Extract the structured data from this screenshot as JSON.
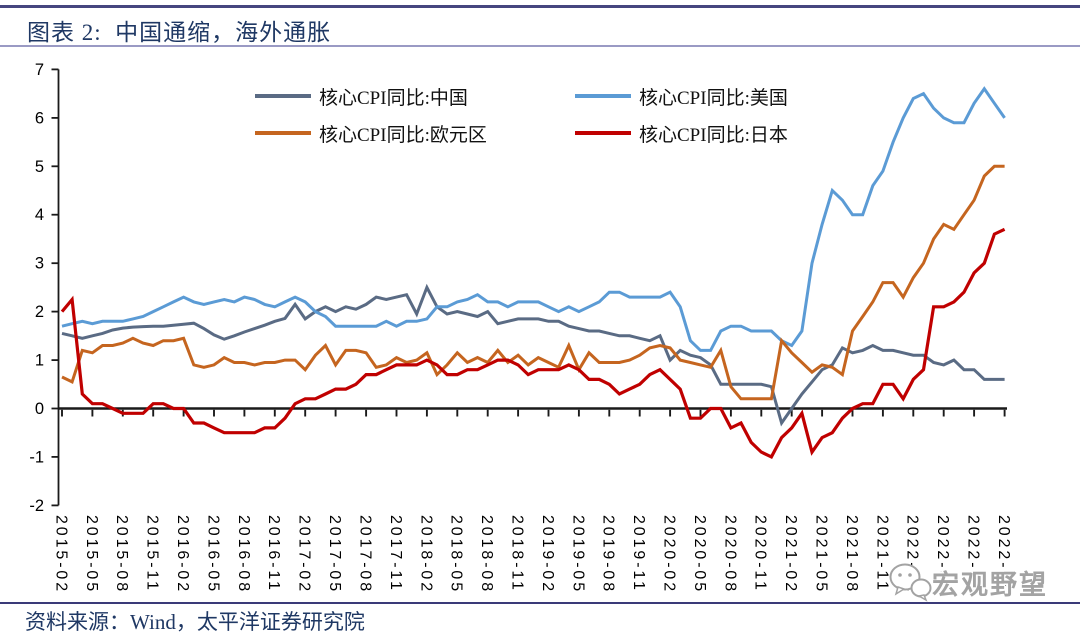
{
  "header": {
    "title": "图表 2:  中国通缩，海外通胀"
  },
  "footer": {
    "source_label": "资料来源：Wind，太平洋证券研究院"
  },
  "watermark": {
    "text": "宏观野望",
    "icon": "wechat-chat-bubbles-icon"
  },
  "chart_data": {
    "type": "line",
    "title": "中国通缩，海外通胀",
    "xlabel": "",
    "ylabel": "",
    "ylim": [
      -2,
      7
    ],
    "y_ticks": [
      7,
      6,
      5,
      4,
      3,
      2,
      1,
      0,
      -1,
      -2
    ],
    "x_tick_step": 3,
    "grid": false,
    "legend_position": "top-inside-two-columns",
    "x": [
      "2015-02",
      "2015-03",
      "2015-04",
      "2015-05",
      "2015-06",
      "2015-07",
      "2015-08",
      "2015-09",
      "2015-10",
      "2015-11",
      "2015-12",
      "2016-01",
      "2016-02",
      "2016-03",
      "2016-04",
      "2016-05",
      "2016-06",
      "2016-07",
      "2016-08",
      "2016-09",
      "2016-10",
      "2016-11",
      "2016-12",
      "2017-01",
      "2017-02",
      "2017-03",
      "2017-04",
      "2017-05",
      "2017-06",
      "2017-07",
      "2017-08",
      "2017-09",
      "2017-10",
      "2017-11",
      "2017-12",
      "2018-01",
      "2018-02",
      "2018-03",
      "2018-04",
      "2018-05",
      "2018-06",
      "2018-07",
      "2018-08",
      "2018-09",
      "2018-10",
      "2018-11",
      "2018-12",
      "2019-01",
      "2019-02",
      "2019-03",
      "2019-04",
      "2019-05",
      "2019-06",
      "2019-07",
      "2019-08",
      "2019-09",
      "2019-10",
      "2019-11",
      "2019-12",
      "2020-01",
      "2020-02",
      "2020-03",
      "2020-04",
      "2020-05",
      "2020-06",
      "2020-07",
      "2020-08",
      "2020-09",
      "2020-10",
      "2020-11",
      "2020-12",
      "2021-01",
      "2021-02",
      "2021-03",
      "2021-04",
      "2021-05",
      "2021-06",
      "2021-07",
      "2021-08",
      "2021-09",
      "2021-10",
      "2021-11",
      "2021-12",
      "2022-01",
      "2022-02",
      "2022-03",
      "2022-04",
      "2022-05",
      "2022-06",
      "2022-07",
      "2022-08",
      "2022-09",
      "2022-10",
      "2022-11"
    ],
    "series": [
      {
        "name": "核心CPI同比:中国",
        "color": "#5a6b84",
        "values": [
          1.55,
          1.5,
          1.45,
          1.5,
          1.55,
          1.62,
          1.66,
          1.68,
          1.69,
          1.7,
          1.7,
          1.72,
          1.74,
          1.76,
          1.65,
          1.52,
          1.43,
          1.5,
          1.58,
          1.65,
          1.72,
          1.8,
          1.86,
          2.15,
          1.85,
          2.0,
          2.1,
          2.0,
          2.1,
          2.05,
          2.15,
          2.3,
          2.25,
          2.3,
          2.35,
          1.95,
          2.5,
          2.1,
          1.95,
          2.0,
          1.95,
          1.9,
          2.0,
          1.75,
          1.8,
          1.85,
          1.85,
          1.85,
          1.8,
          1.8,
          1.7,
          1.65,
          1.6,
          1.6,
          1.55,
          1.5,
          1.5,
          1.45,
          1.4,
          1.5,
          1.0,
          1.2,
          1.1,
          1.05,
          0.9,
          0.5,
          0.5,
          0.5,
          0.5,
          0.5,
          0.45,
          -0.3,
          0.0,
          0.3,
          0.55,
          0.8,
          0.9,
          1.25,
          1.15,
          1.2,
          1.3,
          1.2,
          1.2,
          1.15,
          1.1,
          1.1,
          0.95,
          0.9,
          1.0,
          0.8,
          0.8,
          0.6,
          0.6,
          0.6
        ]
      },
      {
        "name": "核心CPI同比:美国",
        "color": "#5B9BD5",
        "values": [
          1.7,
          1.75,
          1.8,
          1.75,
          1.8,
          1.8,
          1.8,
          1.85,
          1.9,
          2.0,
          2.1,
          2.2,
          2.3,
          2.2,
          2.15,
          2.2,
          2.25,
          2.2,
          2.3,
          2.25,
          2.15,
          2.1,
          2.2,
          2.3,
          2.2,
          2.0,
          1.9,
          1.7,
          1.7,
          1.7,
          1.7,
          1.7,
          1.8,
          1.7,
          1.8,
          1.8,
          1.85,
          2.1,
          2.1,
          2.2,
          2.25,
          2.35,
          2.2,
          2.2,
          2.1,
          2.2,
          2.2,
          2.2,
          2.1,
          2.0,
          2.1,
          2.0,
          2.1,
          2.2,
          2.4,
          2.4,
          2.3,
          2.3,
          2.3,
          2.3,
          2.4,
          2.1,
          1.4,
          1.2,
          1.2,
          1.6,
          1.7,
          1.7,
          1.6,
          1.6,
          1.6,
          1.4,
          1.3,
          1.6,
          3.0,
          3.8,
          4.5,
          4.3,
          4.0,
          4.0,
          4.6,
          4.9,
          5.5,
          6.0,
          6.4,
          6.5,
          6.2,
          6.0,
          5.9,
          5.9,
          6.3,
          6.6,
          6.3,
          6.0
        ]
      },
      {
        "name": "核心CPI同比:欧元区",
        "color": "#C5651F",
        "values": [
          0.65,
          0.55,
          1.2,
          1.15,
          1.3,
          1.3,
          1.35,
          1.45,
          1.35,
          1.3,
          1.4,
          1.4,
          1.45,
          0.9,
          0.85,
          0.9,
          1.05,
          0.95,
          0.95,
          0.9,
          0.95,
          0.95,
          1.0,
          1.0,
          0.8,
          1.1,
          1.3,
          0.9,
          1.2,
          1.2,
          1.15,
          0.85,
          0.9,
          1.05,
          0.95,
          1.0,
          1.15,
          0.7,
          0.9,
          1.15,
          0.95,
          1.05,
          0.95,
          1.2,
          0.95,
          1.1,
          0.9,
          1.05,
          0.95,
          0.85,
          1.3,
          0.8,
          1.15,
          0.95,
          0.95,
          0.95,
          1.0,
          1.1,
          1.25,
          1.3,
          1.25,
          1.0,
          0.95,
          0.9,
          0.85,
          1.2,
          0.45,
          0.2,
          0.2,
          0.2,
          0.2,
          1.4,
          1.15,
          0.95,
          0.75,
          0.9,
          0.85,
          0.7,
          1.6,
          1.9,
          2.2,
          2.6,
          2.6,
          2.3,
          2.7,
          3.0,
          3.5,
          3.8,
          3.7,
          4.0,
          4.3,
          4.8,
          5.0,
          5.0
        ]
      },
      {
        "name": "核心CPI同比:日本",
        "color": "#C00000",
        "values": [
          2.0,
          2.25,
          0.3,
          0.1,
          0.1,
          0.0,
          -0.1,
          -0.1,
          -0.1,
          0.1,
          0.1,
          0.0,
          0.0,
          -0.3,
          -0.3,
          -0.4,
          -0.5,
          -0.5,
          -0.5,
          -0.5,
          -0.4,
          -0.4,
          -0.2,
          0.1,
          0.2,
          0.2,
          0.3,
          0.4,
          0.4,
          0.5,
          0.7,
          0.7,
          0.8,
          0.9,
          0.9,
          0.9,
          1.0,
          0.9,
          0.7,
          0.7,
          0.8,
          0.8,
          0.9,
          1.0,
          1.0,
          0.9,
          0.7,
          0.8,
          0.8,
          0.8,
          0.9,
          0.8,
          0.6,
          0.6,
          0.5,
          0.3,
          0.4,
          0.5,
          0.7,
          0.8,
          0.6,
          0.4,
          -0.2,
          -0.2,
          0.0,
          0.0,
          -0.4,
          -0.3,
          -0.7,
          -0.9,
          -1.0,
          -0.6,
          -0.4,
          -0.1,
          -0.9,
          -0.6,
          -0.5,
          -0.2,
          0.0,
          0.1,
          0.1,
          0.5,
          0.5,
          0.2,
          0.6,
          0.8,
          2.1,
          2.1,
          2.2,
          2.4,
          2.8,
          3.0,
          3.6,
          3.7
        ]
      }
    ]
  }
}
